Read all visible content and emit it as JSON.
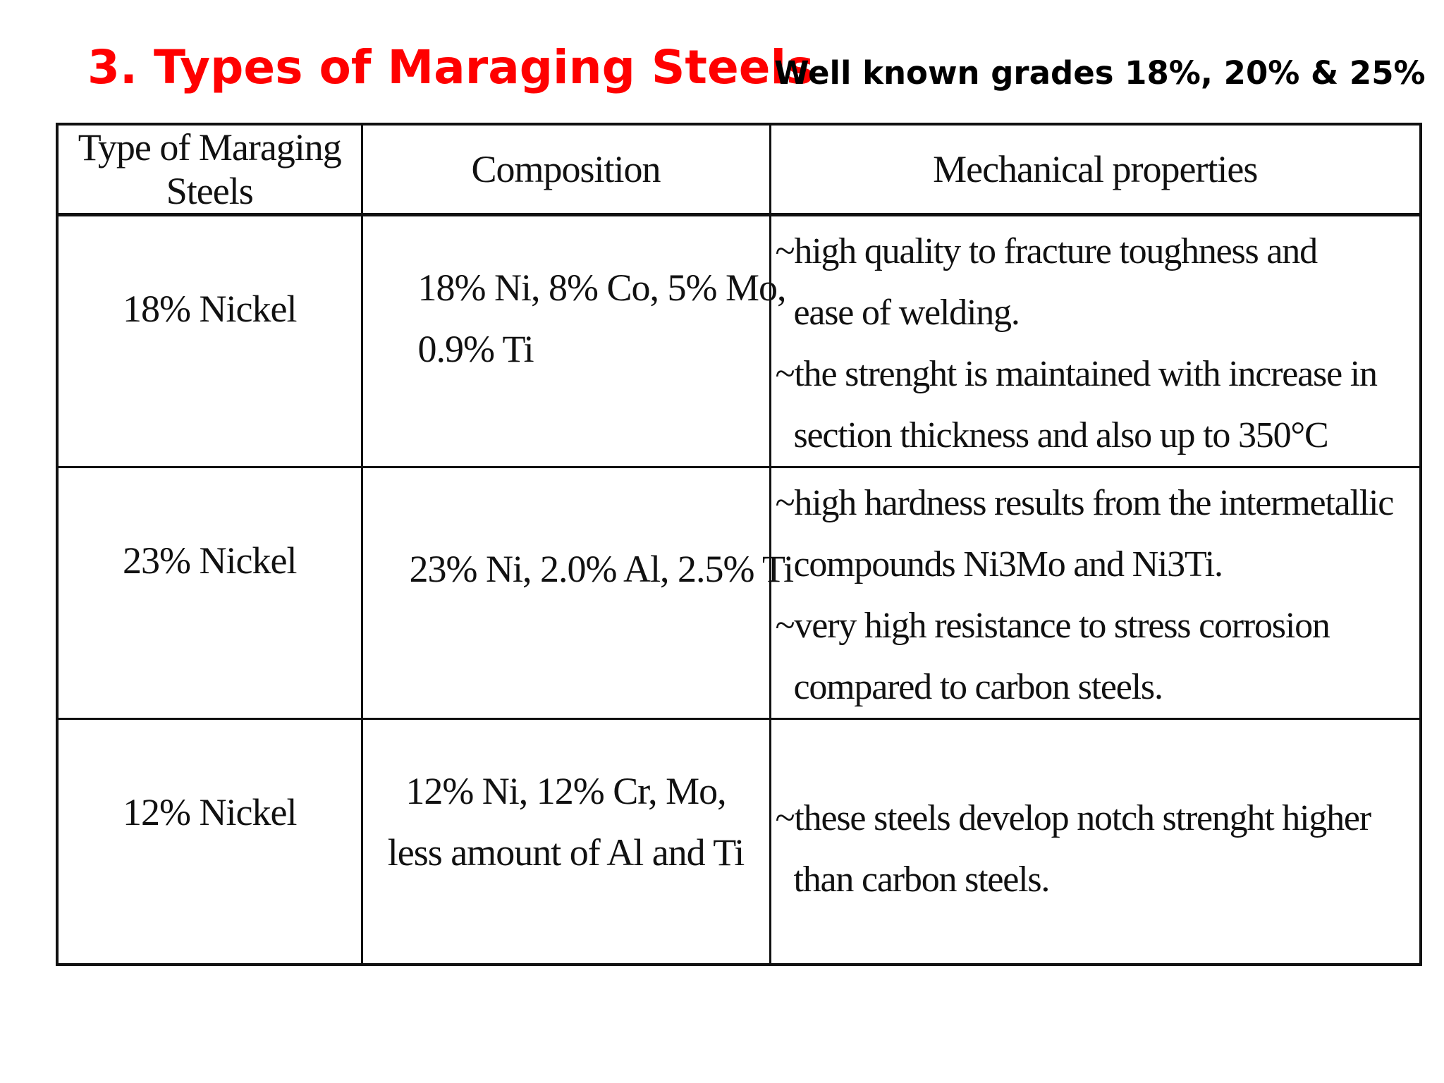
{
  "slide": {
    "title": "3. Types of Maraging Steels",
    "subtitle": "Well known grades 18%,  20% & 25%"
  },
  "colors": {
    "title": "#ff0000",
    "text": "#111111",
    "background": "#ffffff"
  },
  "table": {
    "headers": [
      "Type of Maraging Steels",
      "Composition",
      "Mechanical properties"
    ],
    "rows": [
      {
        "type": "18% Nickel",
        "composition": [
          "18% Ni, 8% Co, 5% Mo,",
          "0.9% Ti"
        ],
        "properties": [
          "~high quality to fracture toughness and",
          "ease of welding.",
          "~the strenght is maintained with increase in",
          "section thickness and also up to 350°C"
        ]
      },
      {
        "type": "23% Nickel",
        "composition": [
          "23% Ni, 2.0% Al, 2.5% Ti"
        ],
        "properties": [
          "~high hardness results from the intermetallic",
          "compounds Ni3Mo and Ni3Ti.",
          "~very high resistance to stress corrosion",
          "compared to carbon steels."
        ]
      },
      {
        "type": "12% Nickel",
        "composition": [
          "12% Ni, 12% Cr, Mo,",
          "less amount of Al and Ti"
        ],
        "properties": [
          "~these steels develop notch strenght higher",
          "than carbon steels."
        ]
      }
    ]
  }
}
